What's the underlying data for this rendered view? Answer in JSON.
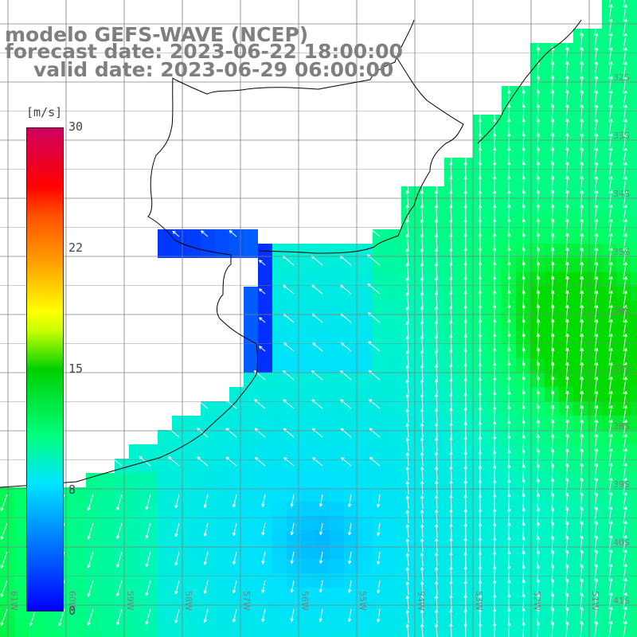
{
  "title": {
    "line1": "modelo GEFS-WAVE (NCEP)",
    "line2": "forecast date: 2023-06-22 18:00:00",
    "line3": "valid date: 2023-06-29 06:00:00"
  },
  "colorbar": {
    "unit": "[m/s]",
    "ticks": [
      {
        "label": "30",
        "value": 30
      },
      {
        "label": "22",
        "value": 22
      },
      {
        "label": "15",
        "value": 15
      },
      {
        "label": "8",
        "value": 8
      },
      {
        "label": "0",
        "value": 0
      }
    ]
  },
  "map": {
    "lat_labels": [
      "32S",
      "33S",
      "34S",
      "35S",
      "36S",
      "37S",
      "38S",
      "39S",
      "40S",
      "41S"
    ],
    "lon_labels": [
      "61W",
      "60W",
      "59W",
      "58W",
      "57W",
      "56W",
      "55W",
      "54W",
      "53W",
      "52W",
      "51W"
    ],
    "colors": {
      "low": "#0000ff",
      "mid": "#00e6ff",
      "high": "#00ff60",
      "land": "#ffffff",
      "grid": "#808080",
      "coast": "#000000",
      "arrow": "#ffffff"
    }
  }
}
